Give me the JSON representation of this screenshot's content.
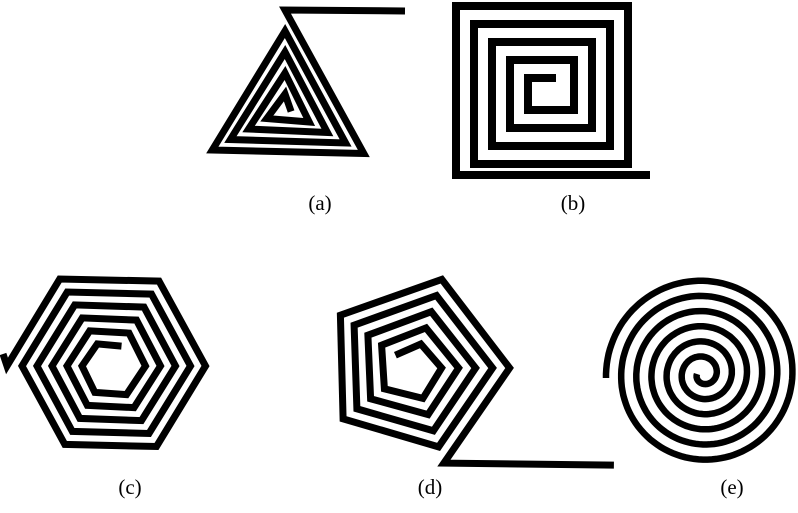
{
  "style": {
    "background": "#ffffff",
    "stroke_color": "#000000"
  },
  "panels": [
    {
      "label": "(a)",
      "shape": "triangle"
    },
    {
      "label": "(b)",
      "shape": "square"
    },
    {
      "label": "(c)",
      "shape": "hexagon"
    },
    {
      "label": "(d)",
      "shape": "pentagon"
    },
    {
      "label": "(e)",
      "shape": "circle"
    }
  ]
}
